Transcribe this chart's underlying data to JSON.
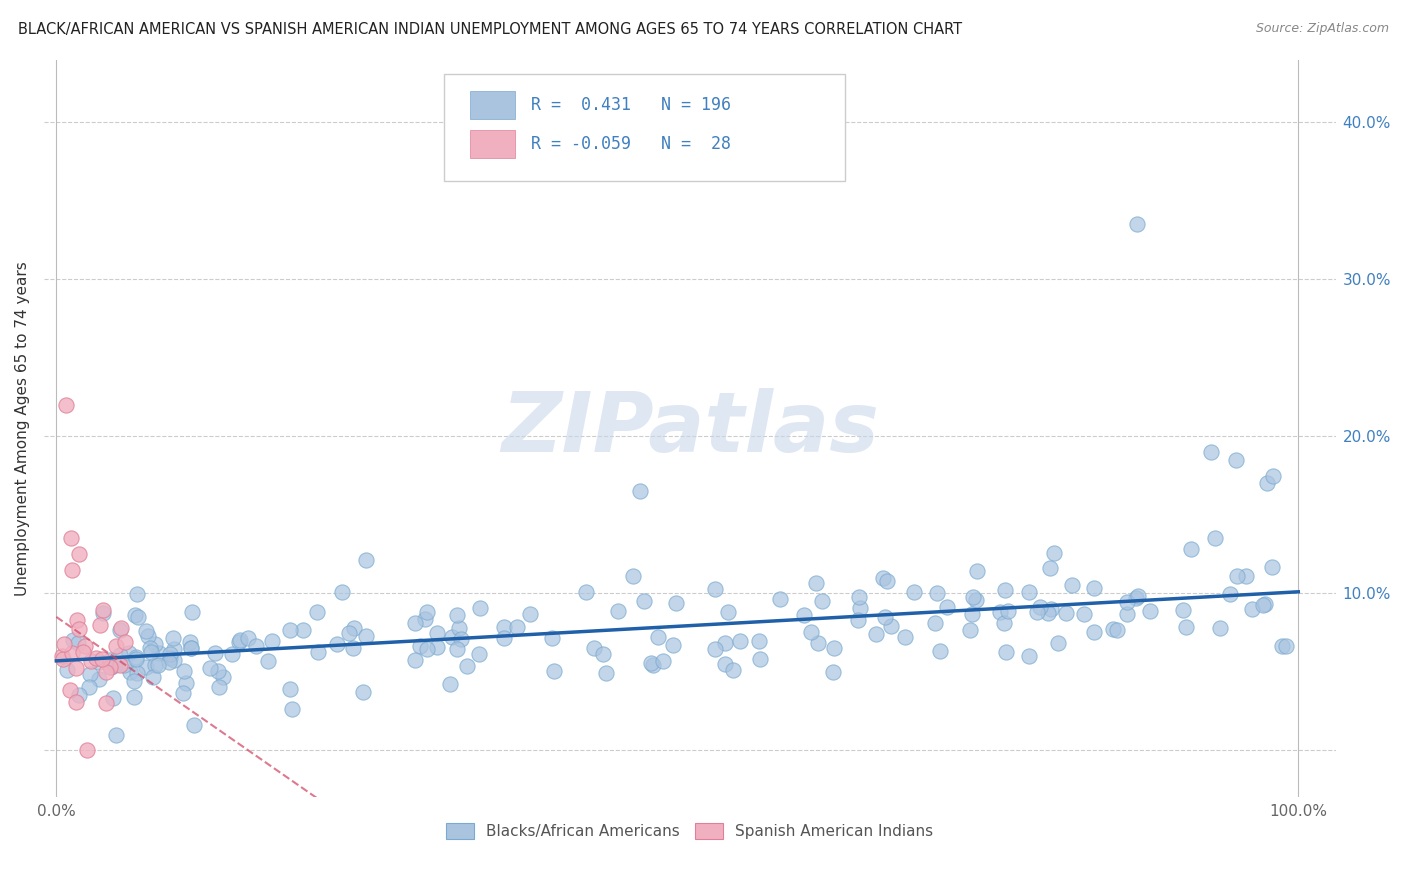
{
  "title": "BLACK/AFRICAN AMERICAN VS SPANISH AMERICAN INDIAN UNEMPLOYMENT AMONG AGES 65 TO 74 YEARS CORRELATION CHART",
  "source": "Source: ZipAtlas.com",
  "ylabel": "Unemployment Among Ages 65 to 74 years",
  "blue_R": 0.431,
  "blue_N": 196,
  "pink_R": -0.059,
  "pink_N": 28,
  "blue_color": "#aac4e0",
  "blue_edge_color": "#7aaad0",
  "blue_line_color": "#2060a8",
  "pink_color": "#f0b0c0",
  "pink_edge_color": "#e08098",
  "pink_line_color": "#d04060",
  "watermark_color": "#c8d8ea",
  "legend_blue_label": "Blacks/African Americans",
  "legend_pink_label": "Spanish American Indians",
  "ytick_color": "#4080c0",
  "xtick_color": "#666666",
  "grid_color": "#cccccc",
  "title_color": "#222222",
  "source_color": "#888888"
}
